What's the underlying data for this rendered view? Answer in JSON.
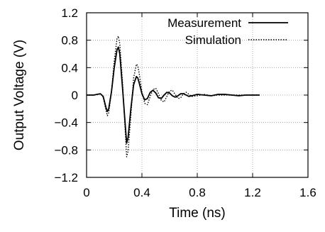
{
  "chart_data": {
    "type": "line",
    "xlabel": "Time (ns)",
    "ylabel": "Output Voltage (V)",
    "xlim": [
      0,
      1.6
    ],
    "ylim": [
      -1.2,
      1.2
    ],
    "x_ticks": [
      0,
      0.4,
      0.8,
      1.2,
      1.6
    ],
    "y_ticks": [
      -1.2,
      -0.8,
      -0.4,
      0,
      0.4,
      0.8,
      1.2
    ],
    "x_tick_labels": [
      "0",
      "0.4",
      "0.8",
      "1.2",
      "1.6"
    ],
    "y_tick_labels": [
      "−1.2",
      "−0.8",
      "−0.4",
      "0",
      "0.4",
      "0.8",
      "1.2"
    ],
    "grid": true,
    "legend_position": "top-right",
    "series": [
      {
        "name": "Measurement",
        "style": "solid",
        "color": "#000000",
        "x": [
          0,
          0.05,
          0.1,
          0.12,
          0.14,
          0.15,
          0.16,
          0.18,
          0.2,
          0.22,
          0.23,
          0.24,
          0.26,
          0.28,
          0.29,
          0.3,
          0.32,
          0.34,
          0.36,
          0.37,
          0.38,
          0.4,
          0.42,
          0.44,
          0.46,
          0.48,
          0.5,
          0.52,
          0.54,
          0.56,
          0.58,
          0.6,
          0.62,
          0.64,
          0.66,
          0.68,
          0.7,
          0.72,
          0.74,
          0.76,
          0.8,
          0.85,
          0.9,
          0.95,
          1.0,
          1.05,
          1.1,
          1.15,
          1.2,
          1.25
        ],
        "y": [
          0,
          0,
          0.02,
          -0.02,
          -0.18,
          -0.24,
          -0.2,
          0.05,
          0.4,
          0.66,
          0.7,
          0.6,
          0.1,
          -0.45,
          -0.7,
          -0.62,
          -0.2,
          0.15,
          0.27,
          0.25,
          0.18,
          0.02,
          -0.07,
          -0.05,
          0.04,
          0.07,
          0.03,
          -0.04,
          -0.05,
          0.0,
          0.04,
          0.03,
          -0.01,
          -0.03,
          -0.01,
          0.02,
          0.02,
          0.0,
          -0.02,
          -0.01,
          0.01,
          0.0,
          -0.01,
          0.01,
          0.01,
          0.0,
          -0.01,
          0.0,
          0.0,
          0.0
        ]
      },
      {
        "name": "Simulation",
        "style": "dotted",
        "color": "#000000",
        "x": [
          0,
          0.05,
          0.1,
          0.12,
          0.14,
          0.15,
          0.16,
          0.18,
          0.2,
          0.22,
          0.23,
          0.24,
          0.26,
          0.28,
          0.29,
          0.3,
          0.32,
          0.34,
          0.36,
          0.37,
          0.38,
          0.4,
          0.42,
          0.44,
          0.46,
          0.48,
          0.5,
          0.52,
          0.54,
          0.56,
          0.58,
          0.6,
          0.62,
          0.64,
          0.66,
          0.68,
          0.7,
          0.72,
          0.74,
          0.76,
          0.8,
          0.85,
          0.9,
          0.95,
          1.0,
          1.05,
          1.1,
          1.15,
          1.2,
          1.25
        ],
        "y": [
          0,
          0,
          0.02,
          -0.03,
          -0.22,
          -0.3,
          -0.26,
          0.04,
          0.5,
          0.82,
          0.86,
          0.75,
          0.18,
          -0.55,
          -0.9,
          -0.82,
          -0.3,
          0.25,
          0.45,
          0.43,
          0.32,
          0.05,
          -0.12,
          -0.14,
          -0.02,
          0.08,
          0.1,
          0.02,
          -0.08,
          -0.1,
          -0.02,
          0.06,
          0.07,
          0.01,
          -0.05,
          -0.04,
          0.02,
          0.04,
          0.01,
          -0.02,
          -0.01,
          0.01,
          -0.01,
          0.0,
          0.0,
          0.0,
          0.0,
          0.0,
          0.0,
          0.0
        ]
      }
    ]
  }
}
